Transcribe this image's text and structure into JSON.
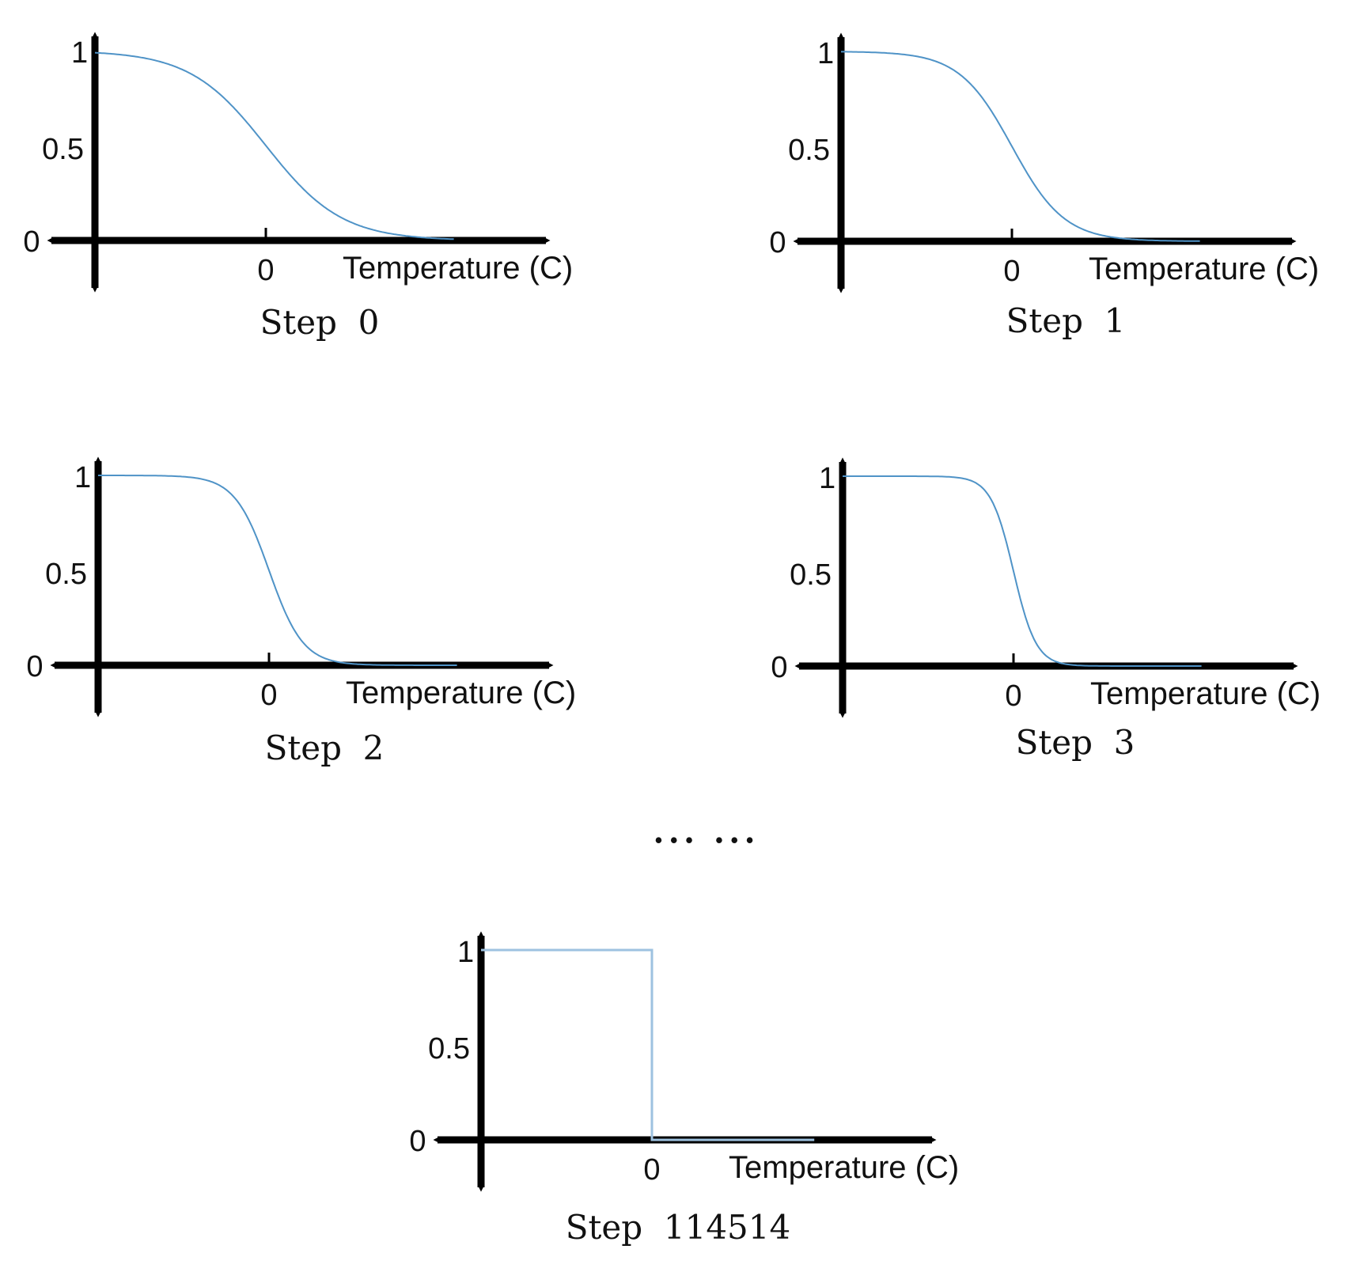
{
  "colors": {
    "curve": "#4f93c7",
    "step_curve": "#9ec2e0",
    "axis": "#000000",
    "text": "#111111"
  },
  "ellipsis": "… …",
  "chart_data": [
    {
      "type": "line",
      "title": "Step  0",
      "xlabel": "Temperature (C)",
      "ylabel": "",
      "x_ticks": [
        "0"
      ],
      "y_ticks": [
        "1",
        "0.5",
        "0"
      ],
      "xlim": [
        -10,
        12
      ],
      "ylim": [
        0,
        1
      ],
      "curve": {
        "kind": "sigmoid",
        "steepness": 0.45
      },
      "x": [
        -10,
        -8,
        -6,
        -4,
        -2,
        0,
        2,
        4,
        6,
        8,
        11
      ],
      "y": [
        0.99,
        0.97,
        0.94,
        0.86,
        0.71,
        0.5,
        0.29,
        0.14,
        0.06,
        0.03,
        0.01
      ]
    },
    {
      "type": "line",
      "title": "Step  1",
      "xlabel": "Temperature (C)",
      "ylabel": "",
      "x_ticks": [
        "0"
      ],
      "y_ticks": [
        "1",
        "0.5",
        "0"
      ],
      "xlim": [
        -10,
        12
      ],
      "ylim": [
        0,
        1
      ],
      "curve": {
        "kind": "sigmoid",
        "steepness": 0.65
      },
      "x": [
        -10,
        -8,
        -6,
        -4,
        -2,
        0,
        2,
        4,
        6,
        8,
        11
      ],
      "y": [
        1.0,
        0.99,
        0.98,
        0.93,
        0.79,
        0.5,
        0.21,
        0.07,
        0.02,
        0.01,
        0.0
      ]
    },
    {
      "type": "line",
      "title": "Step  2",
      "xlabel": "Temperature (C)",
      "ylabel": "",
      "x_ticks": [
        "0"
      ],
      "y_ticks": [
        "1",
        "0.5",
        "0"
      ],
      "xlim": [
        -10,
        12
      ],
      "ylim": [
        0,
        1
      ],
      "curve": {
        "kind": "sigmoid",
        "steepness": 1.0
      },
      "x": [
        -10,
        -8,
        -6,
        -4,
        -2,
        0,
        2,
        4,
        6,
        8,
        11
      ],
      "y": [
        1.0,
        1.0,
        1.0,
        0.98,
        0.88,
        0.5,
        0.12,
        0.02,
        0.0,
        0.0,
        0.0
      ]
    },
    {
      "type": "line",
      "title": "Step  3",
      "xlabel": "Temperature (C)",
      "ylabel": "",
      "x_ticks": [
        "0"
      ],
      "y_ticks": [
        "1",
        "0.5",
        "0"
      ],
      "xlim": [
        -10,
        12
      ],
      "ylim": [
        0,
        1
      ],
      "curve": {
        "kind": "sigmoid",
        "steepness": 1.5
      },
      "x": [
        -10,
        -8,
        -6,
        -4,
        -2,
        0,
        2,
        4,
        6,
        8,
        11
      ],
      "y": [
        1.0,
        1.0,
        1.0,
        1.0,
        0.95,
        0.5,
        0.05,
        0.0,
        0.0,
        0.0,
        0.0
      ]
    },
    {
      "type": "line",
      "title": "Step  114514",
      "xlabel": "Temperature (C)",
      "ylabel": "",
      "x_ticks": [
        "0"
      ],
      "y_ticks": [
        "1",
        "0.5",
        "0"
      ],
      "xlim": [
        -10,
        12
      ],
      "ylim": [
        0,
        1
      ],
      "curve": {
        "kind": "step"
      },
      "x": [
        -10,
        0,
        0,
        9.5
      ],
      "y": [
        1,
        1,
        0,
        0
      ]
    }
  ]
}
